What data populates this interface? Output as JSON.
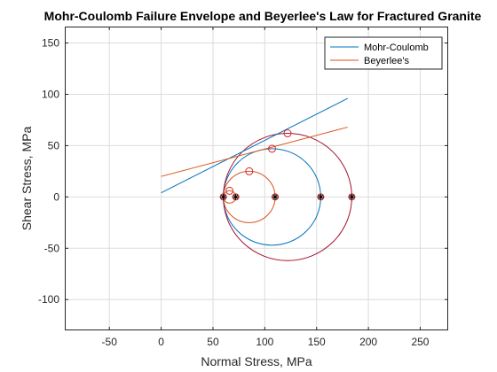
{
  "chart_data": {
    "type": "line",
    "title": "Mohr-Coulomb Failure Envelope and Beyerlee's Law for Fractured Granite",
    "xlabel": "Normal Stress, MPa",
    "ylabel": "Shear Stress, MPa",
    "xlim": [
      -93,
      277
    ],
    "ylim": [
      -130,
      166
    ],
    "xticks": [
      -50,
      0,
      50,
      100,
      150,
      200,
      250
    ],
    "yticks": [
      -100,
      -50,
      0,
      50,
      100,
      150
    ],
    "xtick_labels": [
      "-50",
      "0",
      "50",
      "100",
      "150",
      "200",
      "250"
    ],
    "ytick_labels": [
      "-100",
      "-50",
      "0",
      "50",
      "100",
      "150"
    ],
    "grid": true,
    "legend_position": "top-right",
    "colors": {
      "mohr_coulomb": "#0072BD",
      "beyerlee": "#D95319",
      "large_circle": "#A2142F",
      "contact_marker": "#D62728",
      "stress_marker": "#000000",
      "grid": "#dcdcdc"
    },
    "series": [
      {
        "name": "Mohr-Coulomb",
        "color_key": "mohr_coulomb",
        "x": [
          0,
          180
        ],
        "y": [
          4,
          96
        ]
      },
      {
        "name": "Beyerlee's",
        "color_key": "beyerlee",
        "x": [
          0,
          180
        ],
        "y": [
          20,
          68
        ]
      }
    ],
    "circles": [
      {
        "center": [
          66,
          0
        ],
        "radius": 6,
        "color_key": "beyerlee"
      },
      {
        "center": [
          85,
          0
        ],
        "radius": 25,
        "color_key": "beyerlee"
      },
      {
        "center": [
          107,
          0
        ],
        "radius": 47,
        "color_key": "mohr_coulomb"
      },
      {
        "center": [
          122,
          0
        ],
        "radius": 62,
        "color_key": "large_circle"
      }
    ],
    "contact_points": [
      {
        "x": 66,
        "y": 6
      },
      {
        "x": 85,
        "y": 25
      },
      {
        "x": 107,
        "y": 47
      },
      {
        "x": 122,
        "y": 62
      }
    ],
    "principal_stress_points": [
      {
        "x": 60,
        "y": 0
      },
      {
        "x": 72,
        "y": 0
      },
      {
        "x": 110,
        "y": 0
      },
      {
        "x": 154,
        "y": 0
      },
      {
        "x": 184,
        "y": 0
      }
    ]
  }
}
